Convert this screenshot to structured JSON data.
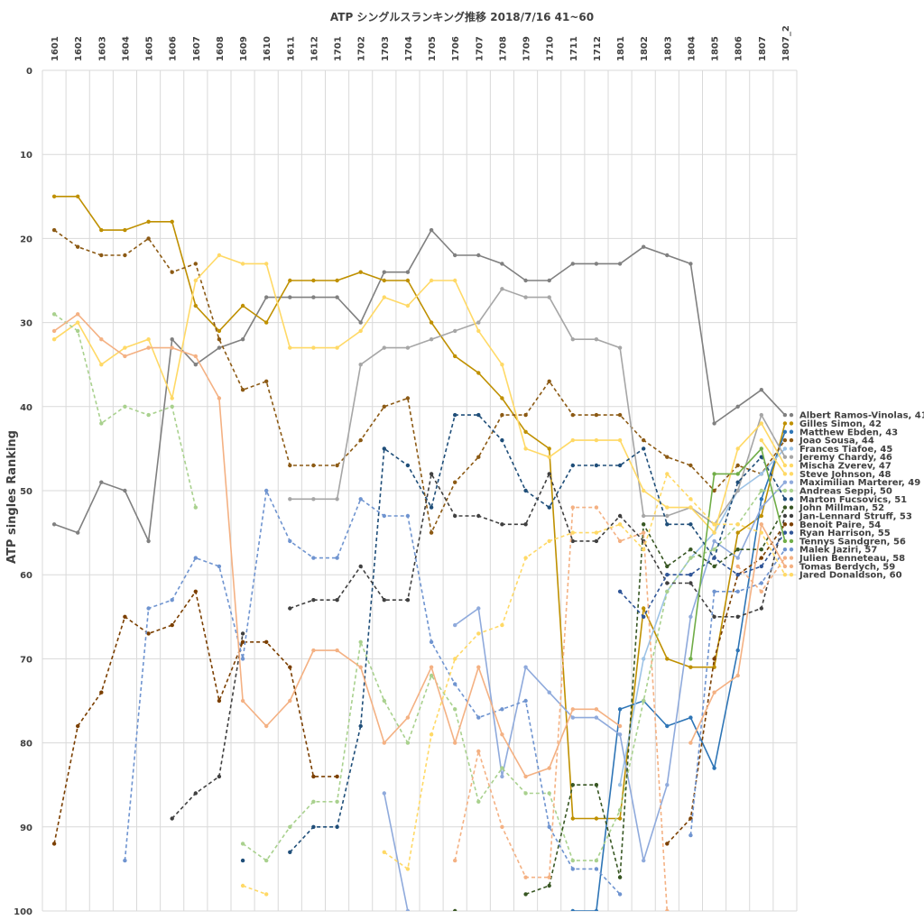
{
  "chart_data": {
    "type": "line",
    "title": "ATP シングルスランキング推移 2018/7/16 41~60",
    "xlabel": "",
    "ylabel": "ATP singles Ranking",
    "ylim": [
      0,
      100
    ],
    "y_inverted": true,
    "y_ticks": [
      "0",
      "10",
      "20",
      "30",
      "40",
      "50",
      "60",
      "70",
      "80",
      "90",
      "100"
    ],
    "grid": true,
    "legend_placement": "inline labels at right end",
    "categories": [
      "1601",
      "1602",
      "1603",
      "1604",
      "1605",
      "1606",
      "1607",
      "1608",
      "1609",
      "1610",
      "1611",
      "1612",
      "1701",
      "1702",
      "1703",
      "1704",
      "1705",
      "1706",
      "1707",
      "1708",
      "1709",
      "1710",
      "1711",
      "1712",
      "1801",
      "1802",
      "1803",
      "1804",
      "1805",
      "1806",
      "1807",
      "1807_2"
    ],
    "series": [
      {
        "name": "Albert Ramos-Vinolas, 41",
        "color": "#808080",
        "dash": false,
        "values": [
          54,
          55,
          49,
          50,
          56,
          32,
          35,
          33,
          32,
          27,
          27,
          27,
          27,
          30,
          24,
          24,
          19,
          22,
          22,
          23,
          25,
          25,
          23,
          23,
          23,
          21,
          22,
          23,
          42,
          40,
          38,
          41
        ]
      },
      {
        "name": "Gilles Simon, 42",
        "color": "#bf9000",
        "dash": false,
        "values": [
          15,
          15,
          19,
          19,
          18,
          18,
          28,
          31,
          28,
          30,
          25,
          25,
          25,
          24,
          25,
          25,
          30,
          34,
          36,
          39,
          43,
          45,
          89,
          89,
          89,
          64,
          70,
          71,
          71,
          55,
          53,
          42
        ]
      },
      {
        "name": "Matthew Ebden, 43",
        "color": "#2e75b6",
        "dash": false,
        "values": [
          null,
          null,
          null,
          null,
          null,
          null,
          null,
          null,
          null,
          null,
          null,
          null,
          null,
          null,
          null,
          null,
          null,
          null,
          null,
          null,
          null,
          null,
          100,
          100,
          76,
          75,
          78,
          77,
          83,
          69,
          51,
          43
        ]
      },
      {
        "name": "Joao Sousa, 44",
        "color": "#8c5a14",
        "dash": true,
        "values": [
          19,
          21,
          22,
          22,
          20,
          24,
          23,
          32,
          38,
          37,
          47,
          47,
          47,
          44,
          40,
          39,
          55,
          49,
          46,
          41,
          41,
          37,
          41,
          41,
          41,
          44,
          46,
          47,
          50,
          47,
          48,
          44
        ]
      },
      {
        "name": "Frances Tiafoe, 45",
        "color": "#9dc3e6",
        "dash": false,
        "values": [
          null,
          null,
          null,
          null,
          null,
          null,
          null,
          null,
          null,
          null,
          null,
          null,
          null,
          null,
          null,
          null,
          null,
          null,
          null,
          null,
          null,
          null,
          null,
          null,
          85,
          70,
          62,
          58,
          55,
          50,
          48,
          45
        ]
      },
      {
        "name": "Jeremy Chardy, 46",
        "color": "#a6a6a6",
        "dash": false,
        "values": [
          null,
          null,
          null,
          null,
          null,
          null,
          null,
          null,
          null,
          null,
          51,
          51,
          51,
          35,
          33,
          33,
          32,
          31,
          30,
          26,
          27,
          27,
          32,
          32,
          33,
          53,
          53,
          52,
          54,
          50,
          41,
          46
        ]
      },
      {
        "name": "Mischa Zverev, 47",
        "color": "#ffd966",
        "dash": false,
        "values": [
          32,
          30,
          35,
          33,
          32,
          39,
          25,
          22,
          23,
          23,
          33,
          33,
          33,
          31,
          27,
          28,
          25,
          25,
          31,
          35,
          45,
          46,
          44,
          44,
          44,
          50,
          52,
          52,
          55,
          45,
          42,
          47
        ]
      },
      {
        "name": "Steve Johnson, 48",
        "color": "#ffd966",
        "dash": false,
        "values": [
          null,
          null,
          null,
          null,
          null,
          null,
          null,
          null,
          null,
          null,
          null,
          null,
          null,
          null,
          null,
          null,
          null,
          null,
          null,
          null,
          null,
          null,
          null,
          null,
          null,
          null,
          null,
          null,
          null,
          null,
          44,
          48
        ]
      },
      {
        "name": "Maximilian Marterer, 49",
        "color": "#8faadc",
        "dash": false,
        "values": [
          null,
          null,
          null,
          null,
          null,
          null,
          null,
          null,
          null,
          null,
          null,
          null,
          null,
          null,
          86,
          100,
          null,
          66,
          64,
          84,
          71,
          74,
          77,
          77,
          79,
          94,
          85,
          65,
          56,
          58,
          52,
          49
        ]
      },
      {
        "name": "Andreas Seppi, 50",
        "color": "#a9d18e",
        "dash": true,
        "values": [
          29,
          31,
          42,
          40,
          41,
          40,
          52,
          null,
          92,
          94,
          90,
          87,
          87,
          68,
          75,
          80,
          72,
          76,
          87,
          83,
          86,
          86,
          94,
          94,
          88,
          75,
          62,
          58,
          57,
          54,
          50,
          50
        ]
      },
      {
        "name": "Marton Fucsovics, 51",
        "color": "#1f4e79",
        "dash": true,
        "values": [
          null,
          null,
          null,
          null,
          null,
          null,
          null,
          null,
          94,
          null,
          93,
          90,
          90,
          78,
          45,
          47,
          52,
          41,
          41,
          44,
          50,
          52,
          47,
          47,
          47,
          45,
          54,
          54,
          58,
          49,
          46,
          51
        ]
      },
      {
        "name": "John Millman, 52",
        "color": "#385723",
        "dash": true,
        "values": [
          null,
          null,
          null,
          null,
          null,
          null,
          null,
          null,
          null,
          null,
          null,
          null,
          null,
          null,
          null,
          null,
          null,
          100,
          null,
          null,
          98,
          97,
          85,
          85,
          96,
          54,
          59,
          57,
          59,
          57,
          57,
          52
        ]
      },
      {
        "name": "Jan-Lennard Struff, 53",
        "color": "#404040",
        "dash": true,
        "values": [
          null,
          null,
          null,
          null,
          null,
          89,
          86,
          84,
          67,
          null,
          64,
          63,
          63,
          59,
          63,
          63,
          48,
          53,
          53,
          54,
          54,
          48,
          56,
          56,
          53,
          56,
          61,
          61,
          65,
          65,
          64,
          53
        ]
      },
      {
        "name": "Benoit Paire, 54",
        "color": "#7b3f00",
        "dash": true,
        "values": [
          92,
          78,
          74,
          65,
          67,
          66,
          62,
          75,
          68,
          68,
          71,
          84,
          84,
          null,
          null,
          null,
          null,
          null,
          null,
          null,
          null,
          null,
          null,
          null,
          null,
          null,
          92,
          89,
          70,
          60,
          58,
          54
        ]
      },
      {
        "name": "Ryan Harrison, 55",
        "color": "#2f5597",
        "dash": true,
        "values": [
          null,
          null,
          null,
          null,
          null,
          null,
          null,
          null,
          null,
          null,
          null,
          null,
          null,
          null,
          null,
          null,
          null,
          null,
          null,
          null,
          null,
          null,
          null,
          null,
          62,
          65,
          60,
          60,
          58,
          60,
          59,
          55
        ]
      },
      {
        "name": "Tennys Sandgren, 56",
        "color": "#70ad47",
        "dash": false,
        "values": [
          null,
          null,
          null,
          null,
          null,
          null,
          null,
          null,
          null,
          null,
          null,
          null,
          null,
          null,
          null,
          null,
          null,
          null,
          null,
          null,
          null,
          null,
          null,
          null,
          null,
          null,
          null,
          70,
          48,
          48,
          45,
          56
        ]
      },
      {
        "name": "Malek Jaziri, 57",
        "color": "#6f94d0",
        "dash": true,
        "values": [
          null,
          null,
          null,
          94,
          64,
          63,
          58,
          59,
          70,
          50,
          56,
          58,
          58,
          51,
          53,
          53,
          68,
          73,
          77,
          76,
          75,
          90,
          95,
          95,
          98,
          null,
          null,
          91,
          62,
          62,
          61,
          57
        ]
      },
      {
        "name": "Julien Benneteau, 58",
        "color": "#f4b183",
        "dash": true,
        "values": [
          null,
          null,
          null,
          null,
          null,
          null,
          null,
          null,
          null,
          null,
          null,
          null,
          null,
          null,
          null,
          null,
          null,
          94,
          81,
          90,
          96,
          96,
          52,
          52,
          56,
          55,
          100,
          null,
          null,
          59,
          62,
          58
        ]
      },
      {
        "name": "Tomas Berdych, 59",
        "color": "#f4b183",
        "dash": false,
        "values": [
          31,
          29,
          32,
          34,
          33,
          33,
          34,
          39,
          75,
          78,
          75,
          69,
          69,
          71,
          80,
          77,
          71,
          80,
          71,
          79,
          84,
          83,
          76,
          76,
          78,
          null,
          null,
          80,
          74,
          72,
          54,
          59
        ]
      },
      {
        "name": "Jared Donaldson, 60",
        "color": "#ffd966",
        "dash": true,
        "values": [
          null,
          null,
          null,
          null,
          null,
          null,
          null,
          null,
          97,
          98,
          null,
          null,
          null,
          null,
          93,
          95,
          79,
          70,
          67,
          66,
          58,
          56,
          55,
          55,
          54,
          57,
          48,
          51,
          54,
          54,
          55,
          60
        ]
      }
    ]
  }
}
